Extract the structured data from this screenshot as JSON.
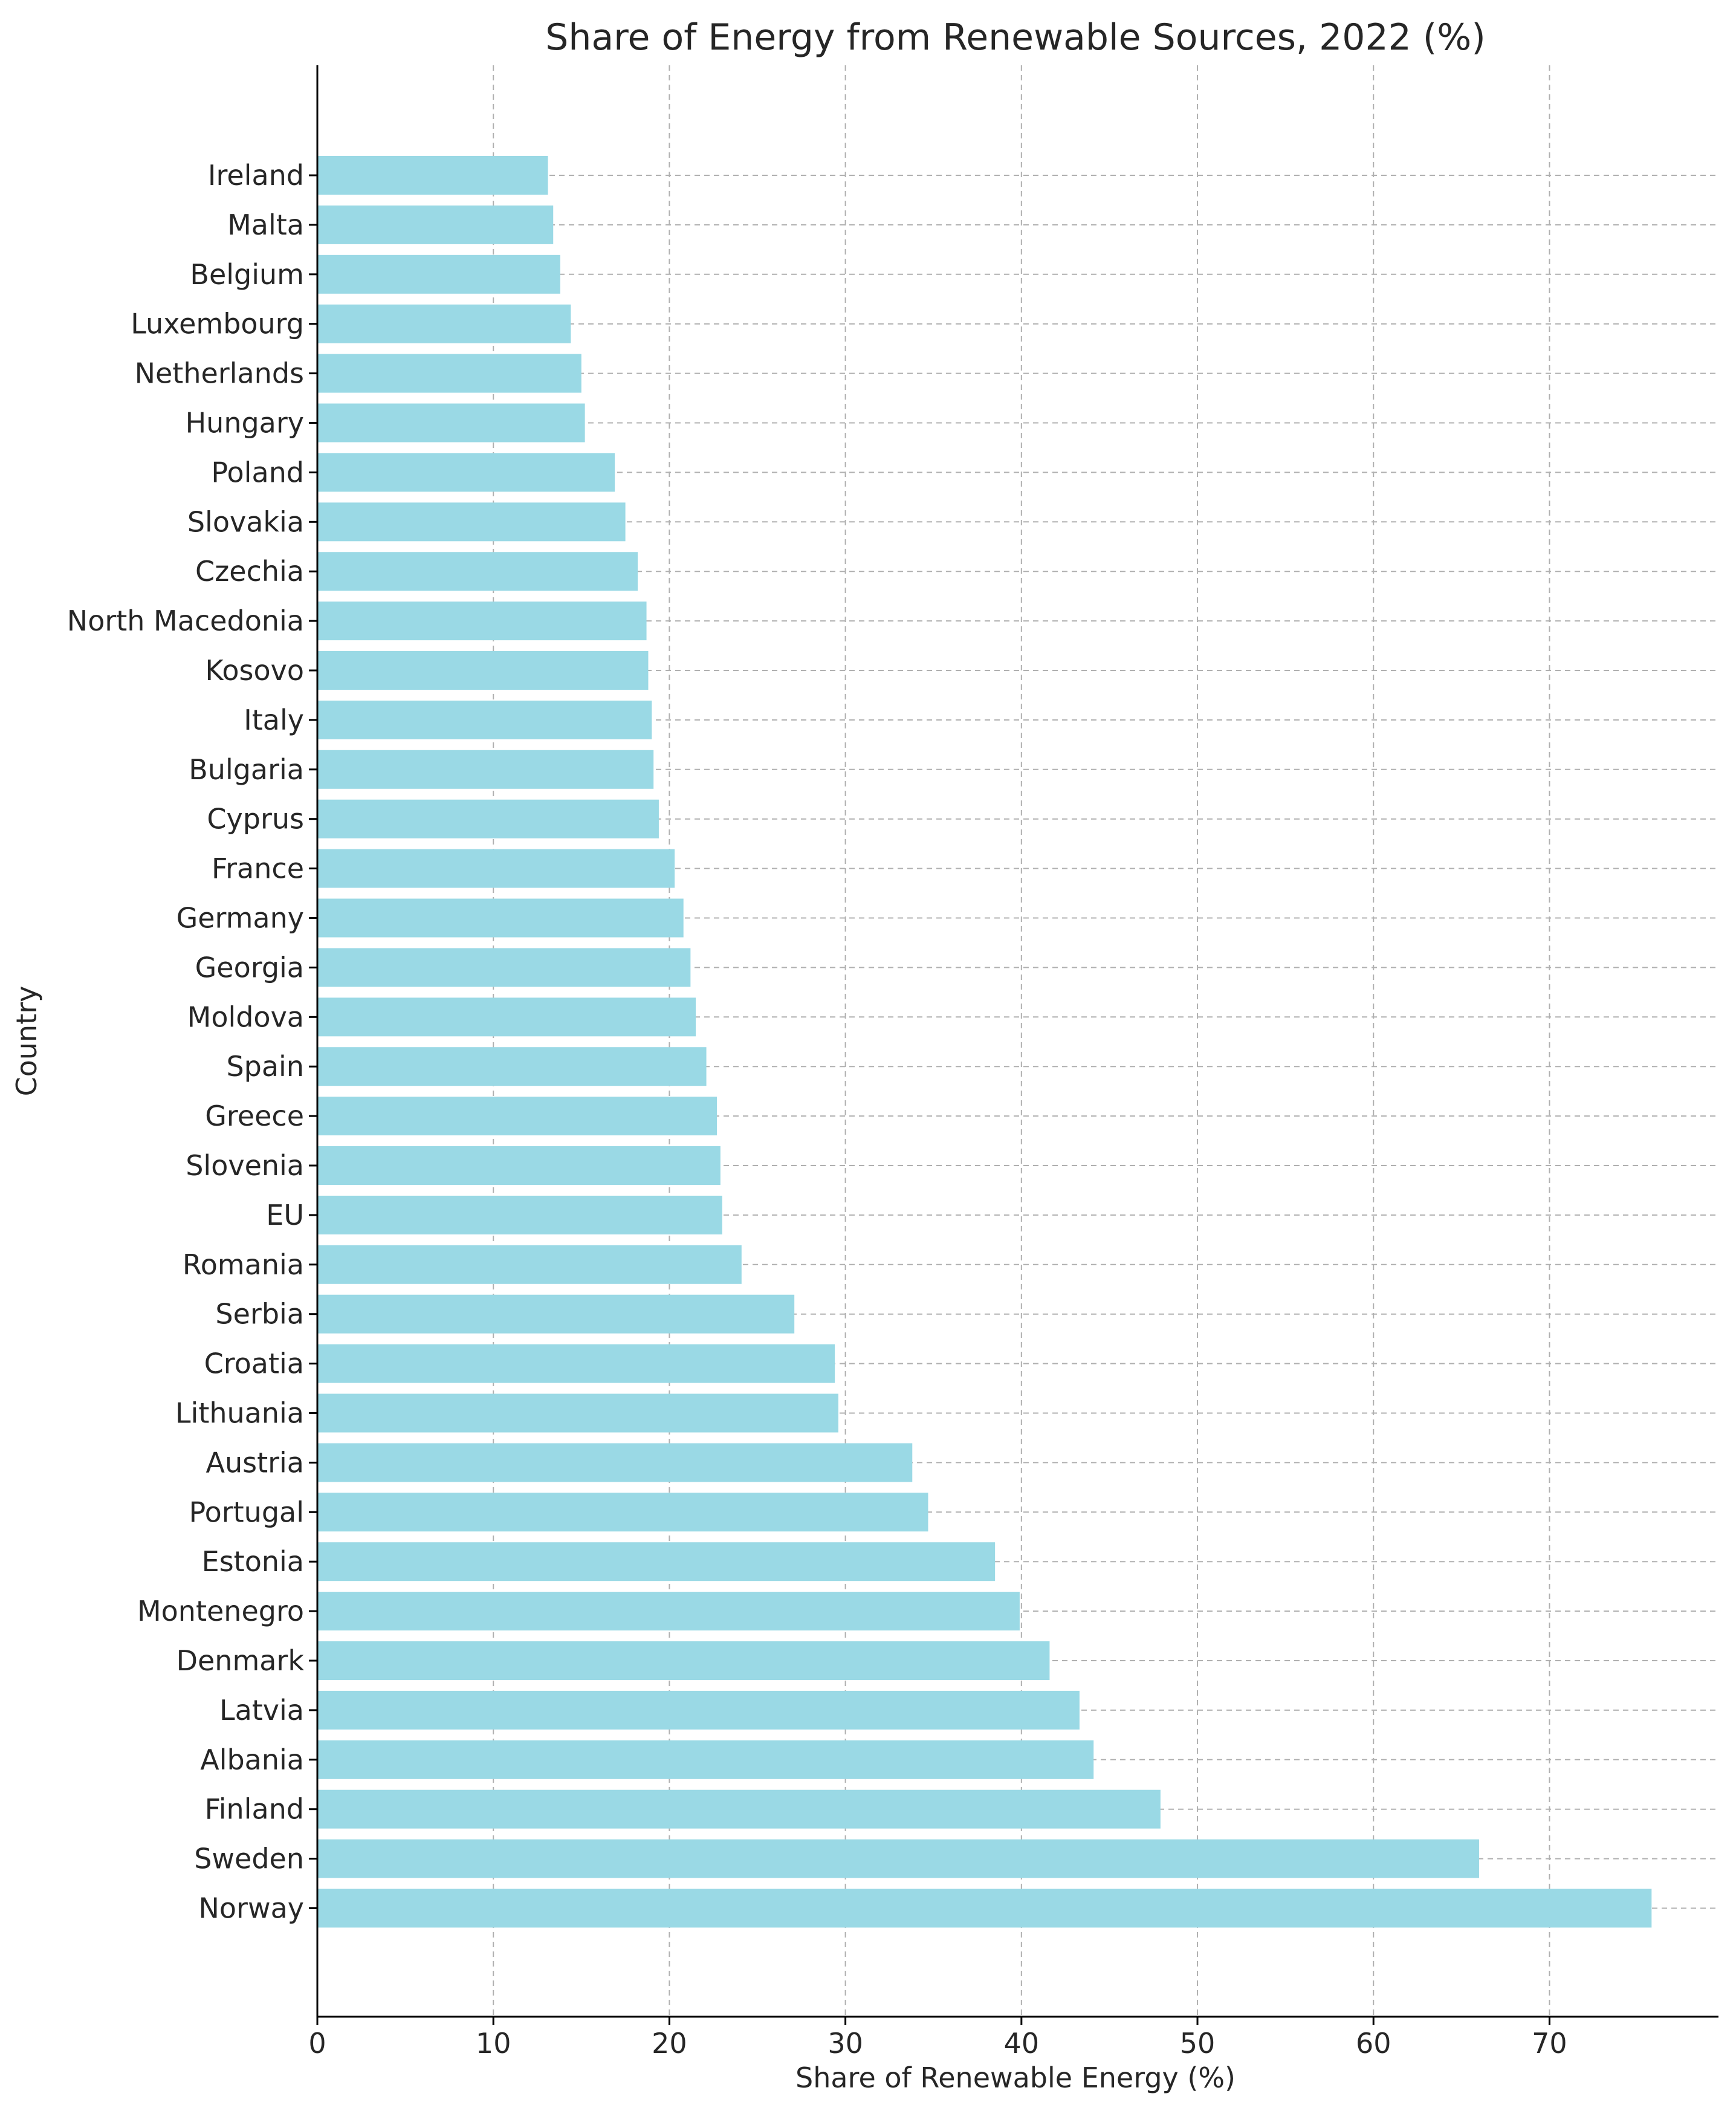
{
  "chart_data": {
    "type": "bar",
    "orientation": "horizontal",
    "title": "Share of Energy from Renewable Sources, 2022 (%)",
    "xlabel": "Share of Renewable Energy (%)",
    "ylabel": "Country",
    "xlim": [
      0,
      79.6
    ],
    "xticks": [
      0,
      10,
      20,
      30,
      40,
      50,
      60,
      70
    ],
    "grid": true,
    "bar_color": "#9ad9e5",
    "categories": [
      "Ireland",
      "Malta",
      "Belgium",
      "Luxembourg",
      "Netherlands",
      "Hungary",
      "Poland",
      "Slovakia",
      "Czechia",
      "North Macedonia",
      "Kosovo",
      "Italy",
      "Bulgaria",
      "Cyprus",
      "France",
      "Germany",
      "Georgia",
      "Moldova",
      "Spain",
      "Greece",
      "Slovenia",
      "EU",
      "Romania",
      "Serbia",
      "Croatia",
      "Lithuania",
      "Austria",
      "Portugal",
      "Estonia",
      "Montenegro",
      "Denmark",
      "Latvia",
      "Albania",
      "Finland",
      "Sweden",
      "Norway"
    ],
    "values": [
      13.1,
      13.4,
      13.8,
      14.4,
      15.0,
      15.2,
      16.9,
      17.5,
      18.2,
      18.7,
      18.8,
      19.0,
      19.1,
      19.4,
      20.3,
      20.8,
      21.2,
      21.5,
      22.1,
      22.7,
      22.9,
      23.0,
      24.1,
      27.1,
      29.4,
      29.6,
      33.8,
      34.7,
      38.5,
      39.9,
      41.6,
      43.3,
      44.1,
      47.9,
      66.0,
      75.8
    ]
  }
}
